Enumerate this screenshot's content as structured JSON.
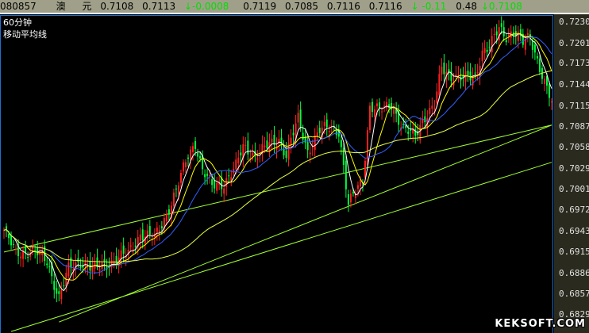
{
  "header": {
    "code": "080857",
    "name1": "澳",
    "name2": "元",
    "open": "0.7108",
    "prev": "0.7113",
    "change": "-0.0008",
    "high": "0.7119",
    "low": "0.7085",
    "last": "0.7116",
    "close": "0.7116",
    "pct": "-0.11",
    "amp": "0.48",
    "latest": "0.7108",
    "down_icon": "arrow-down"
  },
  "labels": {
    "period": "60分钟",
    "indicator": "移动平均线"
  },
  "watermark": "KEKSOFT.COM",
  "colors": {
    "up": "#ff2020",
    "down": "#00ff40",
    "ma5": "#ffffff",
    "ma10": "#ffff00",
    "ma20": "#3060ff",
    "ma60": "#e8ff40",
    "trend": "#a0ff30"
  },
  "chart_data": {
    "type": "candlestick",
    "ylim": [
      0.6812,
      0.7245
    ],
    "yticks": [
      "0.7230",
      "0.7201",
      "0.7173",
      "0.7144",
      "0.7115",
      "0.7087",
      "0.7058",
      "0.7029",
      "0.7001",
      "0.6972",
      "0.6943",
      "0.6915",
      "0.6886",
      "0.6857",
      "0.6829"
    ],
    "bars": 230,
    "close_path": [
      [
        0,
        0.6945
      ],
      [
        5,
        0.6913
      ],
      [
        12,
        0.6918
      ],
      [
        18,
        0.6902
      ],
      [
        23,
        0.6853
      ],
      [
        27,
        0.6891
      ],
      [
        32,
        0.6902
      ],
      [
        38,
        0.6891
      ],
      [
        45,
        0.6902
      ],
      [
        52,
        0.6913
      ],
      [
        57,
        0.694
      ],
      [
        63,
        0.6934
      ],
      [
        68,
        0.6967
      ],
      [
        72,
        0.6999
      ],
      [
        77,
        0.7048
      ],
      [
        80,
        0.7065
      ],
      [
        83,
        0.7027
      ],
      [
        87,
        0.7005
      ],
      [
        92,
        0.701
      ],
      [
        97,
        0.7032
      ],
      [
        100,
        0.7059
      ],
      [
        105,
        0.7048
      ],
      [
        110,
        0.7059
      ],
      [
        115,
        0.707
      ],
      [
        118,
        0.7048
      ],
      [
        123,
        0.7097
      ],
      [
        127,
        0.7054
      ],
      [
        132,
        0.7081
      ],
      [
        137,
        0.7087
      ],
      [
        140,
        0.7081
      ],
      [
        142,
        0.7032
      ],
      [
        144,
        0.6978
      ],
      [
        147,
        0.6999
      ],
      [
        150,
        0.7016
      ],
      [
        153,
        0.7114
      ],
      [
        157,
        0.7108
      ],
      [
        162,
        0.7119
      ],
      [
        167,
        0.7081
      ],
      [
        172,
        0.7076
      ],
      [
        175,
        0.7097
      ],
      [
        180,
        0.7114
      ],
      [
        183,
        0.7168
      ],
      [
        187,
        0.7157
      ],
      [
        192,
        0.7152
      ],
      [
        197,
        0.7157
      ],
      [
        200,
        0.719
      ],
      [
        203,
        0.7195
      ],
      [
        207,
        0.7222
      ],
      [
        210,
        0.7212
      ],
      [
        213,
        0.7217
      ],
      [
        217,
        0.7201
      ],
      [
        220,
        0.7212
      ],
      [
        223,
        0.7179
      ],
      [
        226,
        0.7146
      ],
      [
        229,
        0.7119
      ]
    ],
    "trendlines": [
      [
        [
          3,
          0.6806
        ],
        [
          229,
          0.7038
        ]
      ],
      [
        [
          0,
          0.6915
        ],
        [
          229,
          0.7089
        ]
      ],
      [
        [
          23,
          0.6819
        ],
        [
          229,
          0.7089
        ]
      ]
    ],
    "moving_averages": [
      5,
      10,
      20,
      60
    ]
  }
}
